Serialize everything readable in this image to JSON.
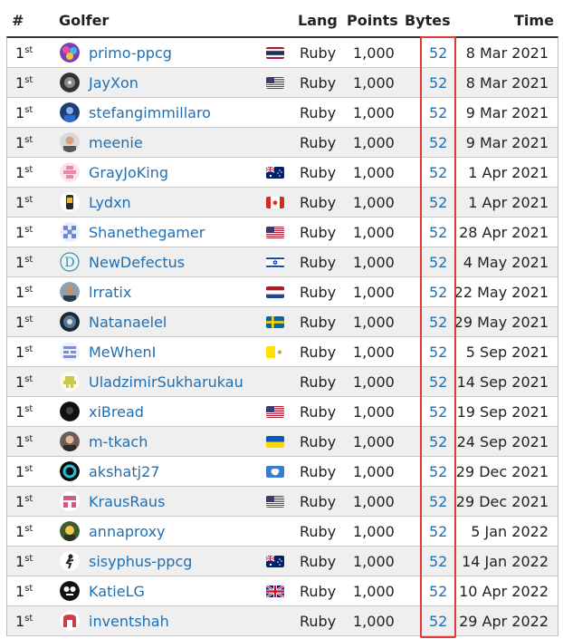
{
  "header": {
    "rank": "#",
    "golfer": "Golfer",
    "lang": "Lang",
    "points": "Points",
    "bytes": "Bytes",
    "time": "Time"
  },
  "colors": {
    "link": "#1f6fb2",
    "highlight": "#e53935",
    "alt_row": "#efefef"
  },
  "rows": [
    {
      "rank": "1",
      "suffix": "st",
      "golfer": "primo-ppcg",
      "avatar": "avatar-icon",
      "flag": "thailand-flag-icon",
      "lang": "Ruby",
      "points": "1,000",
      "bytes": "52",
      "time": "8 Mar 2021"
    },
    {
      "rank": "1",
      "suffix": "st",
      "golfer": "JayXon",
      "avatar": "avatar-icon",
      "flag": "us-flag-icon",
      "lang": "Ruby",
      "points": "1,000",
      "bytes": "52",
      "time": "8 Mar 2021"
    },
    {
      "rank": "1",
      "suffix": "st",
      "golfer": "stefangimmillaro",
      "avatar": "avatar-icon",
      "flag": "",
      "lang": "Ruby",
      "points": "1,000",
      "bytes": "52",
      "time": "9 Mar 2021"
    },
    {
      "rank": "1",
      "suffix": "st",
      "golfer": "meenie",
      "avatar": "avatar-icon",
      "flag": "",
      "lang": "Ruby",
      "points": "1,000",
      "bytes": "52",
      "time": "9 Mar 2021"
    },
    {
      "rank": "1",
      "suffix": "st",
      "golfer": "GrayJoKing",
      "avatar": "avatar-icon",
      "flag": "australia-flag-icon",
      "lang": "Ruby",
      "points": "1,000",
      "bytes": "52",
      "time": "1 Apr 2021"
    },
    {
      "rank": "1",
      "suffix": "st",
      "golfer": "Lydxn",
      "avatar": "avatar-icon",
      "flag": "canada-flag-icon",
      "lang": "Ruby",
      "points": "1,000",
      "bytes": "52",
      "time": "1 Apr 2021"
    },
    {
      "rank": "1",
      "suffix": "st",
      "golfer": "Shanethegamer",
      "avatar": "avatar-icon",
      "flag": "us-flag-icon",
      "lang": "Ruby",
      "points": "1,000",
      "bytes": "52",
      "time": "28 Apr 2021"
    },
    {
      "rank": "1",
      "suffix": "st",
      "golfer": "NewDefectus",
      "avatar": "avatar-icon",
      "flag": "israel-flag-icon",
      "lang": "Ruby",
      "points": "1,000",
      "bytes": "52",
      "time": "4 May 2021"
    },
    {
      "rank": "1",
      "suffix": "st",
      "golfer": "lrratix",
      "avatar": "avatar-icon",
      "flag": "netherlands-flag-icon",
      "lang": "Ruby",
      "points": "1,000",
      "bytes": "52",
      "time": "22 May 2021"
    },
    {
      "rank": "1",
      "suffix": "st",
      "golfer": "Natanaelel",
      "avatar": "avatar-icon",
      "flag": "sweden-flag-icon",
      "lang": "Ruby",
      "points": "1,000",
      "bytes": "52",
      "time": "29 May 2021"
    },
    {
      "rank": "1",
      "suffix": "st",
      "golfer": "MeWhenI",
      "avatar": "avatar-icon",
      "flag": "vatican-flag-icon",
      "lang": "Ruby",
      "points": "1,000",
      "bytes": "52",
      "time": "5 Sep 2021"
    },
    {
      "rank": "1",
      "suffix": "st",
      "golfer": "UladzimirSukharukau",
      "avatar": "avatar-icon",
      "flag": "",
      "lang": "Ruby",
      "points": "1,000",
      "bytes": "52",
      "time": "14 Sep 2021"
    },
    {
      "rank": "1",
      "suffix": "st",
      "golfer": "xiBread",
      "avatar": "avatar-icon",
      "flag": "us-flag-icon",
      "lang": "Ruby",
      "points": "1,000",
      "bytes": "52",
      "time": "19 Sep 2021"
    },
    {
      "rank": "1",
      "suffix": "st",
      "golfer": "m-tkach",
      "avatar": "avatar-icon",
      "flag": "ukraine-flag-icon",
      "lang": "Ruby",
      "points": "1,000",
      "bytes": "52",
      "time": "24 Sep 2021"
    },
    {
      "rank": "1",
      "suffix": "st",
      "golfer": "akshatj27",
      "avatar": "avatar-icon",
      "flag": "antarctica-flag-icon",
      "lang": "Ruby",
      "points": "1,000",
      "bytes": "52",
      "time": "29 Dec 2021"
    },
    {
      "rank": "1",
      "suffix": "st",
      "golfer": "KrausRaus",
      "avatar": "avatar-icon",
      "flag": "us-flag-icon",
      "lang": "Ruby",
      "points": "1,000",
      "bytes": "52",
      "time": "29 Dec 2021"
    },
    {
      "rank": "1",
      "suffix": "st",
      "golfer": "annaproxy",
      "avatar": "avatar-icon",
      "flag": "",
      "lang": "Ruby",
      "points": "1,000",
      "bytes": "52",
      "time": "5 Jan 2022"
    },
    {
      "rank": "1",
      "suffix": "st",
      "golfer": "sisyphus-ppcg",
      "avatar": "avatar-icon",
      "flag": "australia-flag-icon",
      "lang": "Ruby",
      "points": "1,000",
      "bytes": "52",
      "time": "14 Jan 2022"
    },
    {
      "rank": "1",
      "suffix": "st",
      "golfer": "KatieLG",
      "avatar": "avatar-icon",
      "flag": "uk-flag-icon",
      "lang": "Ruby",
      "points": "1,000",
      "bytes": "52",
      "time": "10 Apr 2022"
    },
    {
      "rank": "1",
      "suffix": "st",
      "golfer": "inventshah",
      "avatar": "avatar-icon",
      "flag": "",
      "lang": "Ruby",
      "points": "1,000",
      "bytes": "52",
      "time": "29 Apr 2022"
    }
  ]
}
